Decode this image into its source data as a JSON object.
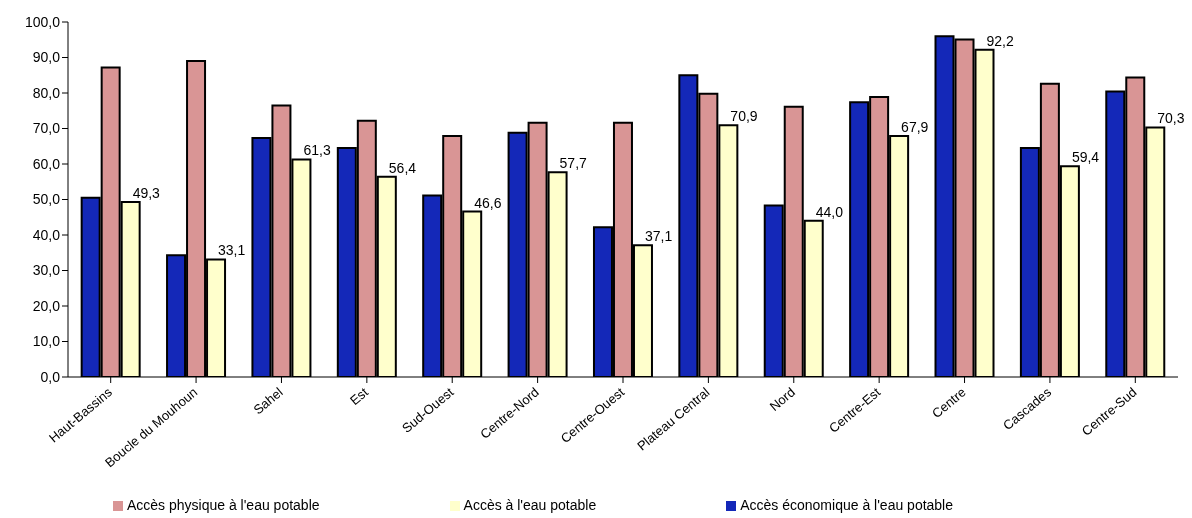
{
  "chart_data": {
    "type": "bar",
    "categories": [
      "Haut-Bassins",
      "Boucle du Mouhoun",
      "Sahel",
      "Est",
      "Sud-Ouest",
      "Centre-Nord",
      "Centre-Ouest",
      "Plateau Central",
      "Nord",
      "Centre-Est",
      "Centre",
      "Cascades",
      "Centre-Sud"
    ],
    "series": [
      {
        "name": "Accès économique  à l'eau  potable",
        "color": "#1428b8",
        "values": [
          50.5,
          34.3,
          67.3,
          64.5,
          51.1,
          68.8,
          42.2,
          85.0,
          48.3,
          77.4,
          96.0,
          64.5,
          80.4
        ]
      },
      {
        "name": "Accès physique  à l'eau  potable",
        "color": "#d99595",
        "values": [
          87.2,
          89.0,
          76.5,
          72.2,
          67.9,
          71.6,
          71.6,
          79.8,
          76.1,
          78.9,
          95.1,
          82.6,
          84.4
        ]
      },
      {
        "name": "Accès à l'eau  potable",
        "color": "#ffffcc",
        "values": [
          49.3,
          33.1,
          61.3,
          56.4,
          46.6,
          57.7,
          37.1,
          70.9,
          44.0,
          67.9,
          92.2,
          59.4,
          70.3
        ],
        "value_labels": [
          "49,3",
          "33,1",
          "61,3",
          "56,4",
          "46,6",
          "57,7",
          "37,1",
          "70,9",
          "44,0",
          "67,9",
          "92,2",
          "59,4",
          "70,3"
        ]
      }
    ],
    "ylim": [
      0,
      100
    ],
    "yticks": [
      {
        "value": 0,
        "label": "0,0"
      },
      {
        "value": 10,
        "label": "10,0"
      },
      {
        "value": 20,
        "label": "20,0"
      },
      {
        "value": 30,
        "label": "30,0"
      },
      {
        "value": 40,
        "label": "40,0"
      },
      {
        "value": 50,
        "label": "50,0"
      },
      {
        "value": 60,
        "label": "60,0"
      },
      {
        "value": 70,
        "label": "70,0"
      },
      {
        "value": 80,
        "label": "80,0"
      },
      {
        "value": 90,
        "label": "90,0"
      },
      {
        "value": 100,
        "label": "100,0"
      }
    ],
    "legend": "bottom"
  }
}
